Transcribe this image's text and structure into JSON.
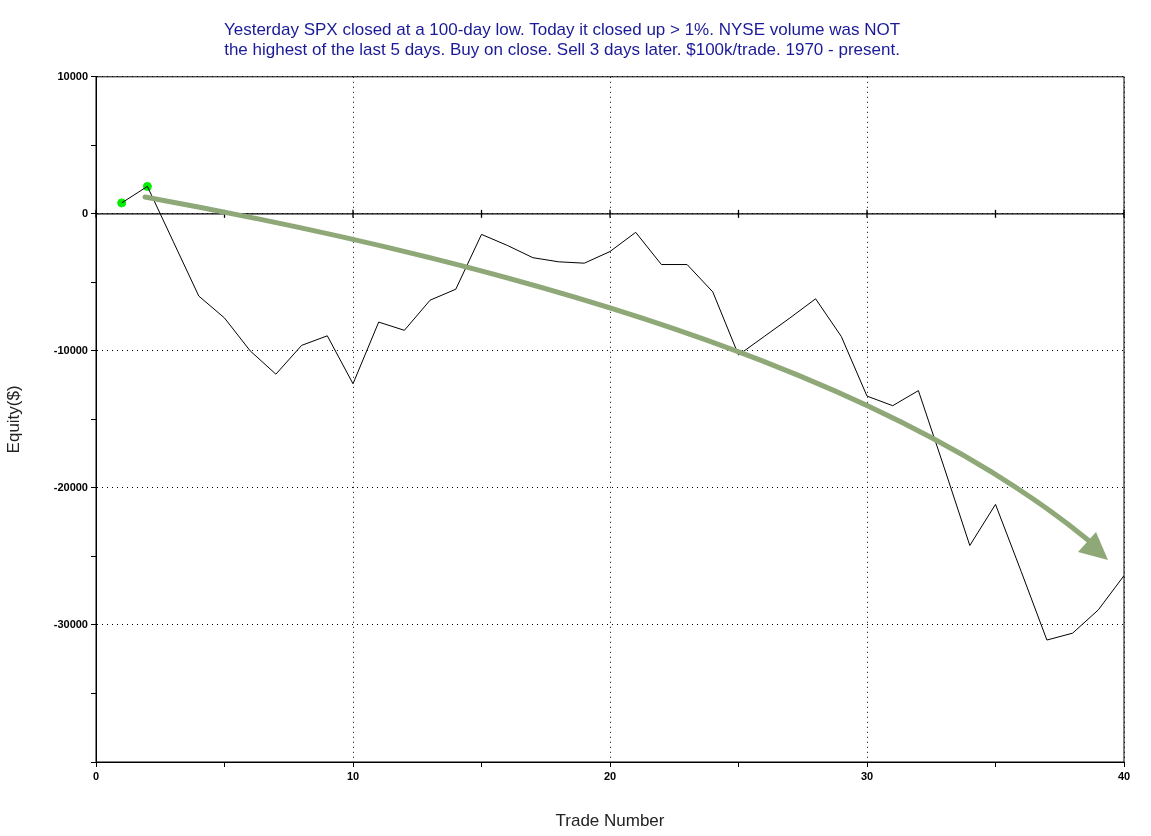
{
  "chart_data": {
    "type": "line",
    "title": "Yesterday SPX closed at a 100-day low. Today it closed up > 1%. NYSE volume was NOT\nthe highest of the last 5 days. Buy on close. Sell 3 days later. $100k/trade. 1970 - present.",
    "xlabel": "Trade Number",
    "ylabel": "Equity($)",
    "x": [
      1,
      2,
      3,
      4,
      5,
      6,
      7,
      8,
      9,
      10,
      11,
      12,
      13,
      14,
      15,
      16,
      17,
      18,
      19,
      20,
      21,
      22,
      23,
      24,
      25,
      26,
      27,
      28,
      29,
      30,
      31,
      32,
      33,
      34,
      35,
      36,
      37,
      38,
      39,
      40
    ],
    "series": [
      {
        "color": "#000000",
        "marker": "none",
        "values": [
          800,
          2000,
          -2000,
          -6000,
          -7600,
          -10000,
          -11700,
          -9600,
          -8900,
          -12400,
          -7900,
          -8500,
          -6300,
          -5500,
          -1500,
          -2300,
          -3200,
          -3500,
          -3600,
          -2750,
          -1350,
          -3700,
          -3700,
          -5700,
          -10300,
          -8950,
          -7600,
          -6200,
          -8950,
          -13300,
          -14000,
          -12900,
          -18500,
          -24200,
          -21200,
          -26100,
          -31100,
          -30600,
          -28900,
          -26400
        ]
      },
      {
        "type": "scatter",
        "color": "#00ee00",
        "marker": "circle",
        "x": [
          1,
          2
        ],
        "values": [
          800,
          2000
        ]
      }
    ],
    "xlim": [
      0,
      40
    ],
    "xticks": [
      0,
      {
        "value": 5,
        "label": null
      },
      10,
      {
        "value": 15,
        "label": null
      },
      20,
      {
        "value": 25,
        "label": null
      },
      30,
      {
        "value": 35,
        "label": null
      },
      40
    ],
    "ylim": [
      -40000,
      10000
    ],
    "yticks": [
      {
        "value": -40000,
        "label": null
      },
      {
        "value": -35000,
        "label": null
      },
      -30000,
      {
        "value": -25000,
        "label": null
      },
      -20000,
      {
        "value": -15000,
        "label": null
      },
      -10000,
      {
        "value": -5000,
        "label": null
      },
      0,
      {
        "value": 5000,
        "label": null
      },
      10000
    ],
    "grid": true,
    "legend": false,
    "ref_lines": [
      {
        "axis": "y",
        "value": 0,
        "color": "#000000",
        "line_style": "solid"
      }
    ]
  }
}
